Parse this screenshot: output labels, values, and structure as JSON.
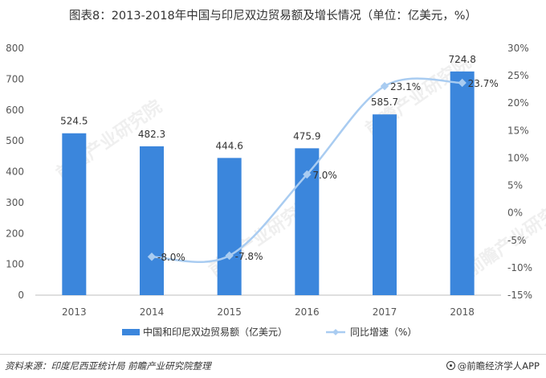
{
  "title": "图表8：2013-2018年中国与印尼双边贸易额及增长情况（单位：亿美元，%）",
  "source": "资料来源：印度尼西亚统计局 前瞻产业研究院整理",
  "brand": "@前瞻经济学人APP",
  "watermark": "前瞻产业研究院",
  "colors": {
    "bar": "#3b86dc",
    "line": "#a9ccf1",
    "marker": "#a9ccf1",
    "grid": "#d9d9d9"
  },
  "chart_data": {
    "type": "bar",
    "categories": [
      "2013",
      "2014",
      "2015",
      "2016",
      "2017",
      "2018"
    ],
    "series": [
      {
        "name": "中国和印尼双边贸易额（亿美元）",
        "type": "bar",
        "axis": "left",
        "values": [
          524.5,
          482.3,
          444.6,
          475.9,
          585.7,
          724.8
        ],
        "labels": [
          "524.5",
          "482.3",
          "444.6",
          "475.9",
          "585.7",
          "724.8"
        ]
      },
      {
        "name": "同比增速（%）",
        "type": "line",
        "axis": "right",
        "values": [
          null,
          -8.0,
          -7.8,
          7.0,
          23.1,
          23.7
        ],
        "labels": [
          "",
          "-8.0%",
          "-7.8%",
          "7.0%",
          "23.1%",
          "23.7%"
        ]
      }
    ],
    "y_left": {
      "min": 0,
      "max": 800,
      "ticks": [
        "0",
        "100",
        "200",
        "300",
        "400",
        "500",
        "600",
        "700",
        "800"
      ]
    },
    "y_right": {
      "min": -15,
      "max": 30,
      "ticks": [
        "-15%",
        "-10%",
        "-5%",
        "0%",
        "5%",
        "10%",
        "15%",
        "20%",
        "25%",
        "30%"
      ]
    },
    "grid": false,
    "legend_position": "bottom"
  }
}
